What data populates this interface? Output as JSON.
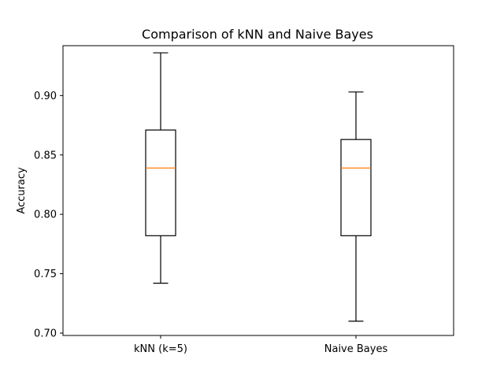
{
  "chart_data": {
    "type": "box",
    "title": "Comparison of kNN and Naive Bayes",
    "xlabel": "",
    "ylabel": "Accuracy",
    "ylim": [
      0.698,
      0.942
    ],
    "yticks": [
      0.7,
      0.75,
      0.8,
      0.85,
      0.9
    ],
    "ytick_labels": [
      "0.70",
      "0.75",
      "0.80",
      "0.85",
      "0.90"
    ],
    "grid": false,
    "categories": [
      "kNN (k=5)",
      "Naive Bayes"
    ],
    "boxes": [
      {
        "label": "kNN (k=5)",
        "whisker_low": 0.742,
        "q1": 0.782,
        "median": 0.839,
        "q3": 0.871,
        "whisker_high": 0.936
      },
      {
        "label": "Naive Bayes",
        "whisker_low": 0.71,
        "q1": 0.782,
        "median": 0.839,
        "q3": 0.863,
        "whisker_high": 0.903
      }
    ],
    "colors": {
      "box": "#000000",
      "median": "#ff7f0e",
      "axes": "#000000"
    }
  }
}
